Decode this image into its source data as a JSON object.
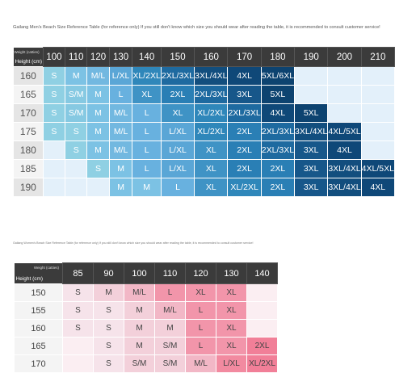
{
  "men": {
    "caption": "Gailang Men's Beach Size Reference Table (for reference only) If you still don't know which size you should wear after reading the table, it is recommended to consult customer service!",
    "corner_weight": "Weight (catties)",
    "corner_height": "Height (cm)",
    "weights": [
      "100",
      "110",
      "120",
      "130",
      "140",
      "150",
      "160",
      "170",
      "180",
      "190",
      "200",
      "210"
    ],
    "rows": [
      {
        "height": "160",
        "cells": [
          "S",
          "M",
          "M/L",
          "L/XL",
          "XL/2XL",
          "2XL/3XL",
          "3XL/4XL",
          "4XL",
          "5XL/6XL",
          "",
          "",
          ""
        ]
      },
      {
        "height": "165",
        "cells": [
          "S",
          "S/M",
          "M",
          "L",
          "XL",
          "2XL",
          "2XL/3XL",
          "3XL",
          "5XL",
          "",
          "",
          ""
        ]
      },
      {
        "height": "170",
        "cells": [
          "S",
          "S/M",
          "M",
          "M/L",
          "L",
          "XL",
          "XL/2XL",
          "2XL/3XL",
          "4XL",
          "5XL",
          "",
          ""
        ]
      },
      {
        "height": "175",
        "cells": [
          "S",
          "S",
          "M",
          "M/L",
          "L",
          "L/XL",
          "XL/2XL",
          "2XL",
          "2XL/3XL",
          "3XL/4XL",
          "4XL/5XL",
          ""
        ]
      },
      {
        "height": "180",
        "cells": [
          "",
          "S",
          "M",
          "M/L",
          "L",
          "L/XL",
          "XL",
          "2XL",
          "2XL/3XL",
          "3XL",
          "4XL",
          ""
        ]
      },
      {
        "height": "185",
        "cells": [
          "",
          "",
          "S",
          "M",
          "L",
          "L/XL",
          "XL",
          "2XL",
          "2XL",
          "3XL",
          "3XL/4XL",
          "4XL/5XL"
        ]
      },
      {
        "height": "190",
        "cells": [
          "",
          "",
          "",
          "M",
          "M",
          "L",
          "XL",
          "XL/2XL",
          "2XL",
          "3XL",
          "3XL/4XL",
          "4XL"
        ]
      }
    ]
  },
  "women": {
    "caption": "Gailang Women's Beach Size Reference Table (for reference only) If you still don't know which size you should wear after reading the table, it is recommended to consult customer service!",
    "corner_weight": "Weight (catties)",
    "corner_height": "Height (cm)",
    "weights": [
      "85",
      "90",
      "100",
      "110",
      "120",
      "130",
      "140"
    ],
    "rows": [
      {
        "height": "150",
        "cells": [
          "S",
          "M",
          "M/L",
          "L",
          "XL",
          "XL",
          ""
        ]
      },
      {
        "height": "155",
        "cells": [
          "S",
          "S",
          "M",
          "M/L",
          "L",
          "XL",
          ""
        ]
      },
      {
        "height": "160",
        "cells": [
          "S",
          "S",
          "M",
          "M",
          "L",
          "XL",
          ""
        ]
      },
      {
        "height": "165",
        "cells": [
          "",
          "S",
          "M",
          "S/M",
          "L",
          "XL",
          "2XL"
        ]
      },
      {
        "height": "170",
        "cells": [
          "",
          "S",
          "S/M",
          "S/M",
          "M/L",
          "L/XL",
          "XL/2XL"
        ]
      }
    ]
  },
  "colors": {
    "header_bg": "#3b3b3b",
    "men_palette": {
      "S": "#8fd0e3",
      "S/M": "#86c9e2",
      "M": "#7cc2e4",
      "M/L": "#72b8e0",
      "L": "#68b1df",
      "L/XL": "#5aa6d6",
      "XL": "#3f93c5",
      "XL/2XL": "#2f87ba",
      "2XL": "#2a7fb5",
      "2XL/3XL": "#1e6aa0",
      "3XL": "#17578a",
      "3XL/4XL": "#124e7e",
      "4XL": "#0f4878",
      "4XL/5XL": "#0f4878",
      "5XL": "#0d4370",
      "5XL/6XL": "#0d4370",
      "empty": "#e3f0fa"
    },
    "women_palette": {
      "S": "#f6e3ea",
      "S/M": "#f3d0da",
      "M": "#f3d0da",
      "M/L": "#f2b7c6",
      "L": "#f295aa",
      "XL": "#f295aa",
      "L/XL": "#f28aa0",
      "XL/2XL": "#f17f98",
      "2XL": "#f17f98",
      "empty": "#fbeef2"
    }
  }
}
